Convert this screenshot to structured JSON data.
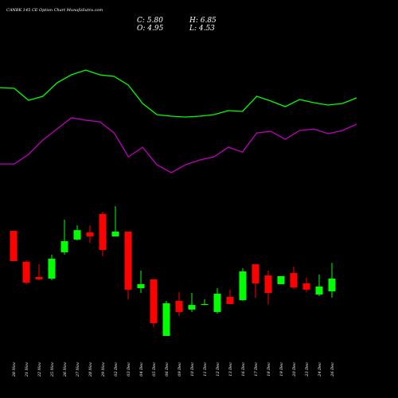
{
  "chart_data": {
    "type": "candlestick",
    "title": "CANBK 145 CE Option  Chart MunafaSutra.com",
    "annotations": [
      "C: 5.80",
      "H: 6.85",
      "O: 4.95",
      "L: 4.53"
    ],
    "categories": [
      "20 Nov",
      "21 Nov",
      "22 Nov",
      "25 Nov",
      "26 Nov",
      "27 Nov",
      "28 Nov",
      "29 Nov",
      "02 Dec",
      "03 Dec",
      "04 Dec",
      "05 Dec",
      "06 Dec",
      "09 Dec",
      "10 Dec",
      "11 Dec",
      "12 Dec",
      "13 Dec",
      "16 Dec",
      "17 Dec",
      "18 Dec",
      "19 Dec",
      "20 Dec",
      "23 Dec",
      "24 Dec",
      "26 Dec"
    ],
    "open": [
      8.99,
      6.92,
      5.91,
      5.8,
      7.56,
      8.41,
      8.89,
      10.11,
      8.62,
      8.94,
      5.16,
      5.75,
      1.97,
      4.31,
      3.73,
      4.04,
      3.57,
      4.58,
      4.36,
      6.76,
      6.01,
      5.43,
      6.17,
      5.48,
      4.74,
      4.95
    ],
    "high": [
      8.99,
      7.02,
      6.76,
      7.4,
      9.74,
      9.36,
      9.36,
      10.27,
      10.64,
      8.94,
      6.33,
      5.75,
      4.31,
      4.9,
      4.84,
      4.42,
      5.16,
      5.06,
      6.49,
      6.76,
      6.33,
      5.96,
      6.6,
      5.85,
      6.07,
      6.85
    ],
    "low": [
      6.97,
      5.43,
      5.69,
      5.69,
      7.4,
      8.35,
      8.19,
      7.29,
      8.62,
      4.42,
      4.84,
      2.56,
      1.97,
      3.3,
      3.57,
      4.04,
      3.46,
      4.1,
      4.31,
      4.52,
      4.1,
      5.43,
      5.11,
      4.9,
      4.63,
      4.53
    ],
    "close": [
      6.97,
      5.53,
      5.75,
      7.13,
      8.3,
      9.04,
      8.62,
      7.71,
      8.94,
      5.06,
      5.43,
      2.82,
      4.15,
      3.57,
      4.04,
      4.1,
      4.79,
      4.1,
      6.28,
      5.48,
      4.84,
      5.96,
      5.21,
      5.06,
      5.27,
      5.8
    ],
    "up_color": "#00ff00",
    "down_color": "#ff0000",
    "ylim": [
      -2.18,
      24.42
    ],
    "y2lim": [
      0,
      50
    ],
    "lines": [
      {
        "color": "#00ff00",
        "axis": "y2",
        "values": [
          39.0,
          38.9,
          37.4,
          37.9,
          39.6,
          40.6,
          41.2,
          40.6,
          40.4,
          39.3,
          37.0,
          35.6,
          35.4,
          35.3,
          35.4,
          35.6,
          36.1,
          36.0,
          37.9,
          37.3,
          36.6,
          37.5,
          37.1,
          36.8,
          37.0,
          37.7
        ]
      },
      {
        "color": "#c000c0",
        "axis": "y2",
        "values": [
          29.4,
          29.4,
          30.6,
          32.4,
          33.8,
          35.2,
          34.9,
          34.7,
          33.3,
          30.3,
          31.5,
          29.3,
          28.3,
          29.3,
          29.9,
          30.3,
          31.5,
          30.9,
          33.3,
          33.5,
          32.5,
          33.6,
          33.8,
          33.2,
          33.6,
          34.4
        ]
      }
    ]
  }
}
